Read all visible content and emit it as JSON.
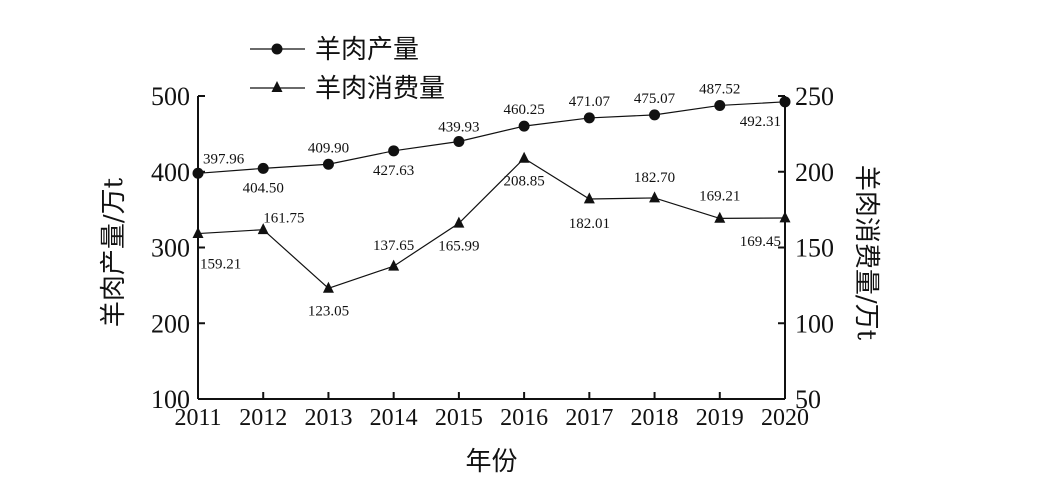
{
  "chart_data": {
    "type": "line",
    "x": [
      2011,
      2012,
      2013,
      2014,
      2015,
      2016,
      2017,
      2018,
      2019,
      2020
    ],
    "series": [
      {
        "name": "羊肉产量",
        "axis": "left",
        "marker": "circle",
        "values": [
          397.96,
          404.5,
          409.9,
          427.63,
          439.93,
          460.25,
          471.07,
          475.07,
          487.52,
          492.31
        ],
        "labels": [
          "397.96",
          "404.50",
          "409.90",
          "427.63",
          "439.93",
          "460.25",
          "471.07",
          "475.07",
          "487.52",
          "492.31"
        ]
      },
      {
        "name": "羊肉消费量",
        "axis": "right",
        "marker": "triangle",
        "values": [
          159.21,
          161.75,
          123.05,
          137.65,
          165.99,
          208.85,
          182.01,
          182.7,
          169.21,
          169.45
        ],
        "labels": [
          "159.21",
          "161.75",
          "123.05",
          "137.65",
          "165.99",
          "208.85",
          "182.01",
          "182.70",
          "169.21",
          "169.45"
        ]
      }
    ],
    "xlabel": "年份",
    "ylabel_left": "羊肉产量/万t",
    "ylabel_right": "羊肉消费量/万t",
    "ylim_left": [
      100,
      500
    ],
    "ylim_right": [
      50,
      250
    ],
    "yticks_left": [
      100,
      200,
      300,
      400,
      500
    ],
    "yticks_right": [
      50,
      100,
      150,
      200,
      250
    ],
    "xtick_labels": [
      "2011",
      "2012",
      "2013",
      "2014",
      "2015",
      "2016",
      "2017",
      "2018",
      "2019",
      "2020"
    ],
    "grid": false,
    "legend_position": "top-left",
    "colors": {
      "line": "#111111",
      "marker": "#111111"
    }
  }
}
